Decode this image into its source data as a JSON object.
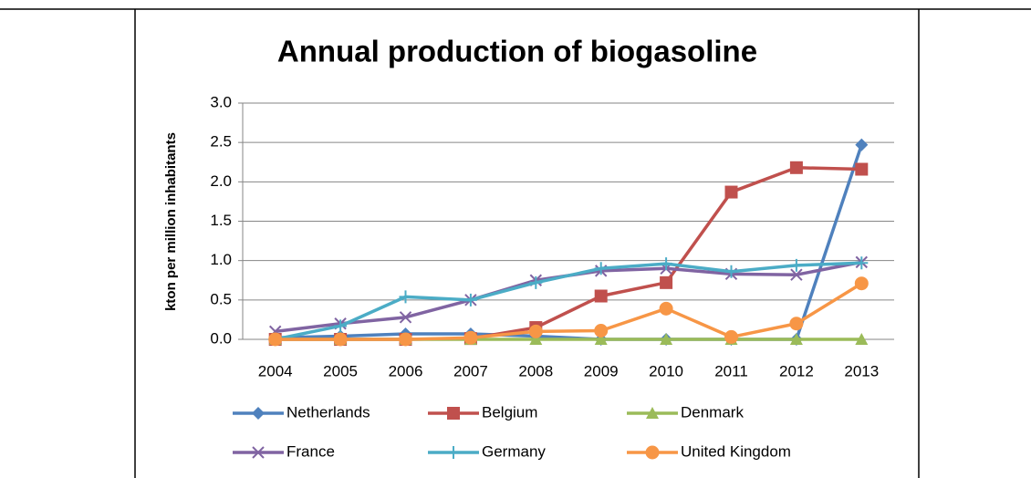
{
  "chart_data": {
    "type": "line",
    "title": "Annual production of biogasoline",
    "ylabel": "kton per million inhabitants",
    "categories": [
      "2004",
      "2005",
      "2006",
      "2007",
      "2008",
      "2009",
      "2010",
      "2011",
      "2012",
      "2013"
    ],
    "ylim": [
      0,
      3
    ],
    "yticks": [
      {
        "value": 0,
        "label": "0.0"
      },
      {
        "value": 0.5,
        "label": "0.5"
      },
      {
        "value": 1,
        "label": "1.0"
      },
      {
        "value": 1.5,
        "label": "1.5"
      },
      {
        "value": 2,
        "label": "2.0"
      },
      {
        "value": 2.5,
        "label": "2.5"
      },
      {
        "value": 3,
        "label": "3.0"
      }
    ],
    "grid": true,
    "legend": "bottom",
    "series": [
      {
        "name": "Netherlands",
        "color": "#4f81bd",
        "marker": "diamond",
        "values": [
          0.02,
          0.04,
          0.07,
          0.07,
          0.04,
          0.0,
          0.0,
          0.0,
          0.0,
          2.47
        ]
      },
      {
        "name": "Belgium",
        "color": "#c0504d",
        "marker": "square",
        "values": [
          0.0,
          0.0,
          0.0,
          0.01,
          0.15,
          0.55,
          0.72,
          1.87,
          2.18,
          2.16
        ]
      },
      {
        "name": "Denmark",
        "color": "#9bbb59",
        "marker": "triangle",
        "values": [
          0,
          0,
          0,
          0,
          0,
          0,
          0,
          0,
          0,
          0
        ]
      },
      {
        "name": "France",
        "color": "#8064a2",
        "marker": "x",
        "values": [
          0.1,
          0.2,
          0.28,
          0.5,
          0.75,
          0.87,
          0.9,
          0.83,
          0.82,
          0.98
        ]
      },
      {
        "name": "Germany",
        "color": "#4bacc6",
        "marker": "plus",
        "values": [
          0.0,
          0.17,
          0.54,
          0.5,
          0.72,
          0.9,
          0.96,
          0.86,
          0.94,
          0.97
        ]
      },
      {
        "name": "United Kingdom",
        "color": "#f79646",
        "marker": "circle",
        "values": [
          0.0,
          0.0,
          0.0,
          0.02,
          0.1,
          0.11,
          0.39,
          0.03,
          0.2,
          0.71
        ]
      }
    ]
  }
}
